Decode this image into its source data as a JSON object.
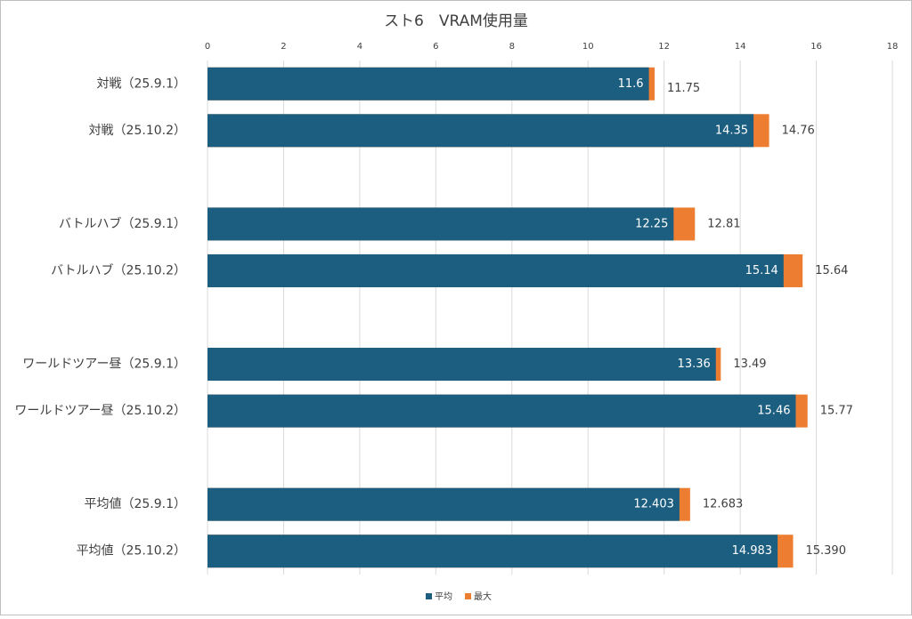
{
  "chart_data": {
    "type": "bar",
    "orientation": "horizontal",
    "title": "スト6　VRAM使用量",
    "categories": [
      "対戦（25.9.1）",
      "対戦（25.10.2）",
      null,
      "バトルハブ（25.9.1）",
      "バトルハブ（25.10.2）",
      null,
      "ワールドツアー昼（25.9.1）",
      "ワールドツアー昼（25.10.2）",
      null,
      "平均値（25.9.1）",
      "平均値（25.10.2）"
    ],
    "series": [
      {
        "name": "平均",
        "color": "#1b5e80",
        "values": [
          11.6,
          14.35,
          null,
          12.25,
          15.14,
          null,
          13.36,
          15.46,
          null,
          12.403,
          14.983
        ]
      },
      {
        "name": "最大",
        "color": "#ed7d31",
        "values": [
          11.75,
          14.76,
          null,
          12.81,
          15.64,
          null,
          13.49,
          15.77,
          null,
          12.683,
          15.39
        ],
        "value_labels": [
          "11.75",
          "14.76",
          null,
          "12.81",
          "15.64",
          null,
          "13.49",
          "15.77",
          null,
          "12.683",
          "15.390"
        ]
      }
    ],
    "xlim": [
      0,
      18
    ],
    "xticks": [
      0,
      2,
      4,
      6,
      8,
      10,
      12,
      14,
      16,
      18
    ],
    "grid": true,
    "legend": "bottom"
  }
}
